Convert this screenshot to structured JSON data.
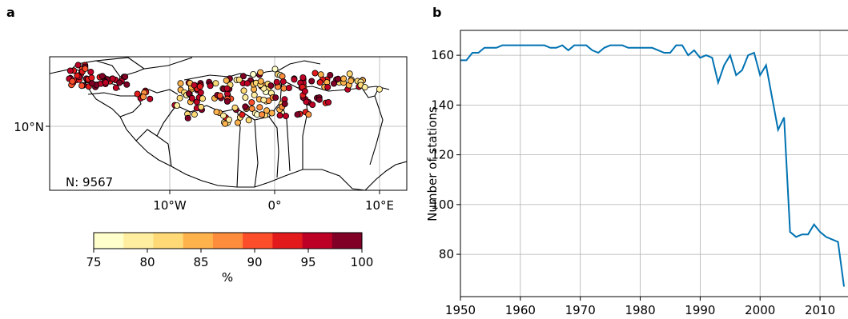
{
  "panel_a": {
    "label": "a",
    "lat_tick_labels": [
      "10°N"
    ],
    "lon_tick_labels": [
      "10°W",
      "0°",
      "10°E"
    ],
    "count_label": "N: 9567",
    "colorbar": {
      "tick_labels": [
        "75",
        "80",
        "85",
        "90",
        "95",
        "100"
      ],
      "unit_label": "%",
      "colors": [
        "#ffffcc",
        "#ffeda0",
        "#fed976",
        "#feb24c",
        "#fd8d3c",
        "#fc4e2a",
        "#e31a1c",
        "#bd0026",
        "#800026"
      ]
    }
  },
  "panel_b": {
    "label": "b",
    "ylabel": "Number of stations",
    "y_tick_labels": [
      "80",
      "100",
      "120",
      "140",
      "160"
    ],
    "x_tick_labels": [
      "1950",
      "1960",
      "1970",
      "1980",
      "1990",
      "2000",
      "2010"
    ],
    "line_color": "#0072b2"
  },
  "chart_data": [
    {
      "type": "scatter",
      "title": "",
      "xlabel": "",
      "ylabel": "",
      "x_ticks": [
        "10°W",
        "0°",
        "10°E"
      ],
      "y_ticks": [
        "10°N"
      ],
      "annotation": "N: 9567",
      "colorbar": {
        "range": [
          75,
          100
        ],
        "unit": "%",
        "ticks": [
          75,
          80,
          85,
          90,
          95,
          100
        ]
      },
      "grid": true
    },
    {
      "type": "line",
      "title": "",
      "xlabel": "",
      "ylabel": "Number of stations",
      "xlim": [
        1950,
        2014
      ],
      "ylim": [
        63,
        170
      ],
      "grid": true,
      "series": [
        {
          "x": [
            1950,
            1951,
            1952,
            1953,
            1954,
            1955,
            1956,
            1957,
            1958,
            1959,
            1960,
            1961,
            1962,
            1963,
            1964,
            1965,
            1966,
            1967,
            1968,
            1969,
            1970,
            1971,
            1972,
            1973,
            1974,
            1975,
            1976,
            1977,
            1978,
            1979,
            1980,
            1981,
            1982,
            1983,
            1984,
            1985,
            1986,
            1987,
            1988,
            1989,
            1990,
            1991,
            1992,
            1993,
            1994,
            1995,
            1996,
            1997,
            1998,
            1999,
            2000,
            2001,
            2002,
            2003,
            2004,
            2005,
            2006,
            2007,
            2008,
            2009,
            2010,
            2011,
            2012,
            2013,
            2014
          ],
          "values": [
            158,
            158,
            161,
            161,
            163,
            163,
            163,
            164,
            164,
            164,
            164,
            164,
            164,
            164,
            164,
            163,
            163,
            164,
            162,
            164,
            164,
            164,
            162,
            161,
            163,
            164,
            164,
            164,
            163,
            163,
            163,
            163,
            163,
            162,
            161,
            161,
            164,
            164,
            160,
            162,
            159,
            160,
            159,
            149,
            156,
            160,
            152,
            154,
            160,
            161,
            152,
            156,
            143,
            130,
            135,
            89,
            87,
            88,
            88,
            92,
            89,
            87,
            86,
            85,
            67
          ]
        }
      ]
    }
  ]
}
